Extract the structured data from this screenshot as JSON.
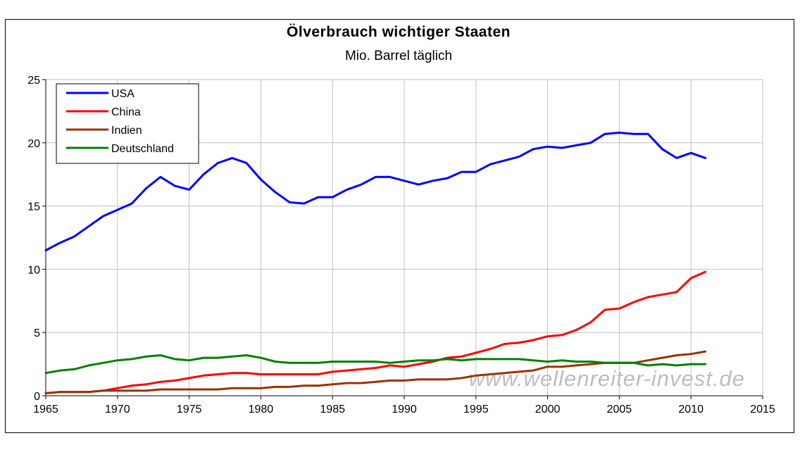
{
  "chart_data": {
    "type": "line",
    "title": "Ölverbrauch wichtiger Staaten",
    "subtitle": "Mio. Barrel täglich",
    "xlim": [
      1965,
      2015
    ],
    "ylim": [
      0,
      25
    ],
    "x_ticks": [
      "1965",
      "1970",
      "1975",
      "1980",
      "1985",
      "1990",
      "1995",
      "2000",
      "2005",
      "2010",
      "2015"
    ],
    "y_ticks": [
      "0",
      "5",
      "10",
      "15",
      "20",
      "25"
    ],
    "grid": true,
    "legend_position": "top-left",
    "x": [
      1965,
      1966,
      1967,
      1968,
      1969,
      1970,
      1971,
      1972,
      1973,
      1974,
      1975,
      1976,
      1977,
      1978,
      1979,
      1980,
      1981,
      1982,
      1983,
      1984,
      1985,
      1986,
      1987,
      1988,
      1989,
      1990,
      1991,
      1992,
      1993,
      1994,
      1995,
      1996,
      1997,
      1998,
      1999,
      2000,
      2001,
      2002,
      2003,
      2004,
      2005,
      2006,
      2007,
      2008,
      2009,
      2010,
      2011
    ],
    "series": [
      {
        "name": "USA",
        "color": "#0000ff",
        "values": [
          11.5,
          12.1,
          12.6,
          13.4,
          14.2,
          14.7,
          15.2,
          16.4,
          17.3,
          16.6,
          16.3,
          17.5,
          18.4,
          18.8,
          18.4,
          17.1,
          16.1,
          15.3,
          15.2,
          15.7,
          15.7,
          16.3,
          16.7,
          17.3,
          17.3,
          17.0,
          16.7,
          17.0,
          17.2,
          17.7,
          17.7,
          18.3,
          18.6,
          18.9,
          19.5,
          19.7,
          19.6,
          19.8,
          20.0,
          20.7,
          20.8,
          20.7,
          20.7,
          19.5,
          18.8,
          19.2,
          18.8
        ]
      },
      {
        "name": "China",
        "color": "#ff0000",
        "values": [
          0.2,
          0.3,
          0.3,
          0.3,
          0.4,
          0.6,
          0.8,
          0.9,
          1.1,
          1.2,
          1.4,
          1.6,
          1.7,
          1.8,
          1.8,
          1.7,
          1.7,
          1.7,
          1.7,
          1.7,
          1.9,
          2.0,
          2.1,
          2.2,
          2.4,
          2.3,
          2.5,
          2.7,
          3.0,
          3.1,
          3.4,
          3.7,
          4.1,
          4.2,
          4.4,
          4.7,
          4.8,
          5.2,
          5.8,
          6.8,
          6.9,
          7.4,
          7.8,
          8.0,
          8.2,
          9.3,
          9.8
        ]
      },
      {
        "name": "Indien",
        "color": "#993300",
        "values": [
          0.2,
          0.3,
          0.3,
          0.3,
          0.4,
          0.4,
          0.4,
          0.4,
          0.5,
          0.5,
          0.5,
          0.5,
          0.5,
          0.6,
          0.6,
          0.6,
          0.7,
          0.7,
          0.8,
          0.8,
          0.9,
          1.0,
          1.0,
          1.1,
          1.2,
          1.2,
          1.3,
          1.3,
          1.3,
          1.4,
          1.6,
          1.7,
          1.8,
          1.9,
          2.0,
          2.3,
          2.3,
          2.4,
          2.5,
          2.6,
          2.6,
          2.6,
          2.8,
          3.0,
          3.2,
          3.3,
          3.5
        ]
      },
      {
        "name": "Deutschland",
        "color": "#008000",
        "values": [
          1.8,
          2.0,
          2.1,
          2.4,
          2.6,
          2.8,
          2.9,
          3.1,
          3.2,
          2.9,
          2.8,
          3.0,
          3.0,
          3.1,
          3.2,
          3.0,
          2.7,
          2.6,
          2.6,
          2.6,
          2.7,
          2.7,
          2.7,
          2.7,
          2.6,
          2.7,
          2.8,
          2.8,
          2.9,
          2.8,
          2.9,
          2.9,
          2.9,
          2.9,
          2.8,
          2.7,
          2.8,
          2.7,
          2.7,
          2.6,
          2.6,
          2.6,
          2.4,
          2.5,
          2.4,
          2.5,
          2.5
        ]
      }
    ],
    "watermark": "www.wellenreiter-invest.de"
  }
}
